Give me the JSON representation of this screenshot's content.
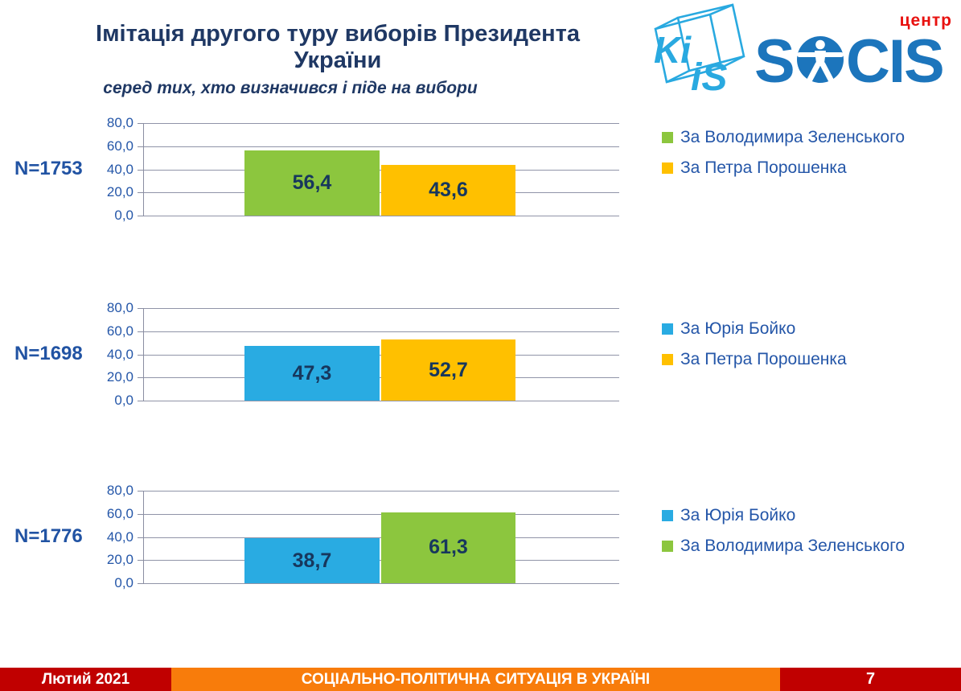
{
  "header": {
    "title": "Імітація другого туру виборів Президента України",
    "subtitle": "серед тих, хто визначився і піде на вибори"
  },
  "logos": {
    "kiis": {
      "top_text": "Ki",
      "bottom_text": "iS",
      "color": "#29A9E0"
    },
    "socis": {
      "prefix": "S",
      "suffix": "CIS",
      "tagline": "центр",
      "color": "#1C75BC",
      "tagline_color": "#E8110F"
    }
  },
  "chart_data": [
    {
      "type": "bar",
      "n_label": "N=1753",
      "ylim": [
        0,
        80
      ],
      "ytick_labels": [
        "80,0",
        "60,0",
        "40,0",
        "20,0",
        "0,0"
      ],
      "grid": true,
      "legend_position": "right",
      "series": [
        {
          "name": "За Володимира Зеленського",
          "value": 56.4,
          "value_label": "56,4",
          "color": "#8CC63E"
        },
        {
          "name": "За Петра Порошенка",
          "value": 43.6,
          "value_label": "43,6",
          "color": "#FFC000"
        }
      ]
    },
    {
      "type": "bar",
      "n_label": "N=1698",
      "ylim": [
        0,
        80
      ],
      "ytick_labels": [
        "80,0",
        "60,0",
        "40,0",
        "20,0",
        "0,0"
      ],
      "grid": true,
      "legend_position": "right",
      "series": [
        {
          "name": "За Юрія Бойко",
          "value": 47.3,
          "value_label": "47,3",
          "color": "#29ABE2"
        },
        {
          "name": "За Петра Порошенка",
          "value": 52.7,
          "value_label": "52,7",
          "color": "#FFC000"
        }
      ]
    },
    {
      "type": "bar",
      "n_label": "N=1776",
      "ylim": [
        0,
        80
      ],
      "ytick_labels": [
        "80,0",
        "60,0",
        "40,0",
        "20,0",
        "0,0"
      ],
      "grid": true,
      "legend_position": "right",
      "series": [
        {
          "name": "За Юрія Бойко",
          "value": 38.7,
          "value_label": "38,7",
          "color": "#29ABE2"
        },
        {
          "name": "За Володимира Зеленського",
          "value": 61.3,
          "value_label": "61,3",
          "color": "#8CC63E"
        }
      ]
    }
  ],
  "footer": {
    "date": "Лютий 2021",
    "banner": "СОЦІАЛЬНО-ПОЛІТИЧНА СИТУАЦІЯ В УКРАЇНІ",
    "page": "7",
    "date_bg": "#C00000",
    "banner_bg": "#F87C0B",
    "page_bg": "#C00000"
  }
}
